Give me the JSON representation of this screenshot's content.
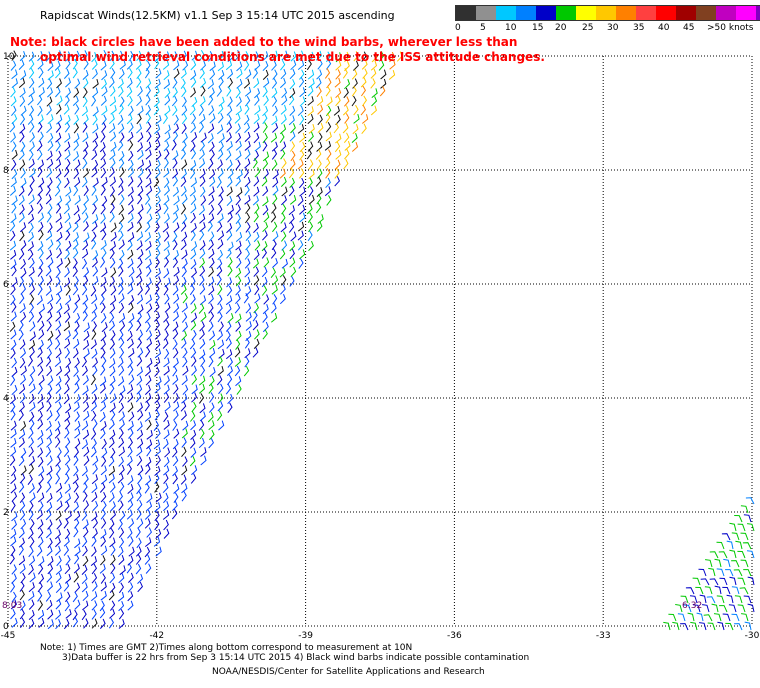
{
  "title": "Rapidscat Winds(12.5KM) v1.1 Sep  3 15:14 UTC 2015 ascending",
  "note": {
    "line1": "Note: black circles have been added to the wind barbs, wherever less than",
    "line2": "optimal wind retrieval conditions are met due to the ISS attitude changes."
  },
  "scale": {
    "labels": [
      "0",
      "5",
      "10",
      "15",
      "20",
      "25",
      "30",
      "35",
      "40",
      "45",
      ">50 knots"
    ],
    "colors": [
      "#303030",
      "#909090",
      "#00c8ff",
      "#0080ff",
      "#0000c8",
      "#00c800",
      "#ffff00",
      "#ffc800",
      "#ff8000",
      "#ff4040",
      "#ff0000",
      "#a00000",
      "#804020",
      "#c000c0",
      "#ff00ff",
      "#8000c0",
      "#400080"
    ]
  },
  "axes": {
    "x_ticks": [
      "-45",
      "-42",
      "-39",
      "-36",
      "-33",
      "-30"
    ],
    "y_ticks": [
      "0",
      "2",
      "4",
      "6",
      "8",
      "10"
    ],
    "x_range": [
      -45,
      -30
    ],
    "y_range": [
      0,
      10
    ]
  },
  "time_stamps": [
    "8:03",
    "6:32"
  ],
  "footer": {
    "line1": "Note: 1) Times are GMT 2)Times along bottom correspond to measurement at 10N",
    "line2": "3)Data buffer is 22 hrs from Sep  3 15:14 UTC 2015 4) Black wind barbs indicate possible contamination",
    "line3": "NOAA/NESDIS/Center for Satellite Applications and Research"
  }
}
